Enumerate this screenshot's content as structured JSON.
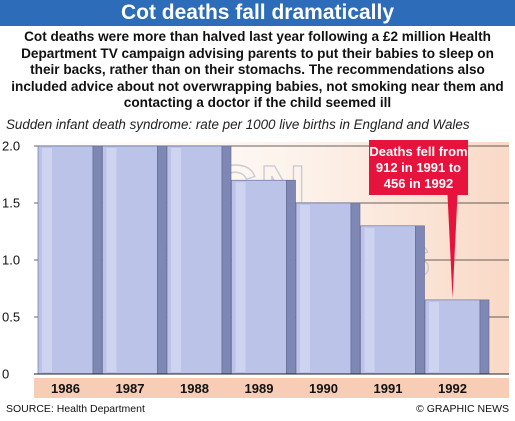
{
  "header": {
    "title": "Cot deaths fall dramatically",
    "intro": "Cot deaths were more than halved last year following a £2 million Health Department TV campaign advising parents to put their babies to sleep on their backs, rather than on their stomachs. The recommendations also included advice about not overwrapping babies, not smoking near them and contacting a doctor if the child seemed ill"
  },
  "footer": {
    "source": "SOURCE: Health Department",
    "credit": "© GRAPHIC NEWS"
  },
  "watermark": {
    "logo": "GN",
    "text": "GRAPHIC NEWS"
  },
  "colors": {
    "title_bar": "#2d6cb8",
    "bar_front": "#bcc3e9",
    "bar_side": "#7f88b4",
    "axis_band": "#f7cdb6",
    "callout": "#e6143c"
  },
  "chart_data": {
    "type": "bar",
    "title": "Sudden infant death syndrome: rate per 1000 live births in England and Wales",
    "xlabel": "",
    "ylabel": "",
    "categories": [
      "1986",
      "1987",
      "1988",
      "1989",
      "1990",
      "1991",
      "1992"
    ],
    "values": [
      2.0,
      2.0,
      2.0,
      1.7,
      1.5,
      1.3,
      0.65
    ],
    "ylim": [
      0,
      2.0
    ],
    "yticks": [
      "0",
      "0.5",
      "1.0",
      "1.5",
      "2.0"
    ],
    "grid": true,
    "legend": "none",
    "annotation": {
      "lines": [
        "Deaths fell from",
        "912 in 1991 to",
        "456 in 1992"
      ],
      "target": "1992"
    }
  }
}
